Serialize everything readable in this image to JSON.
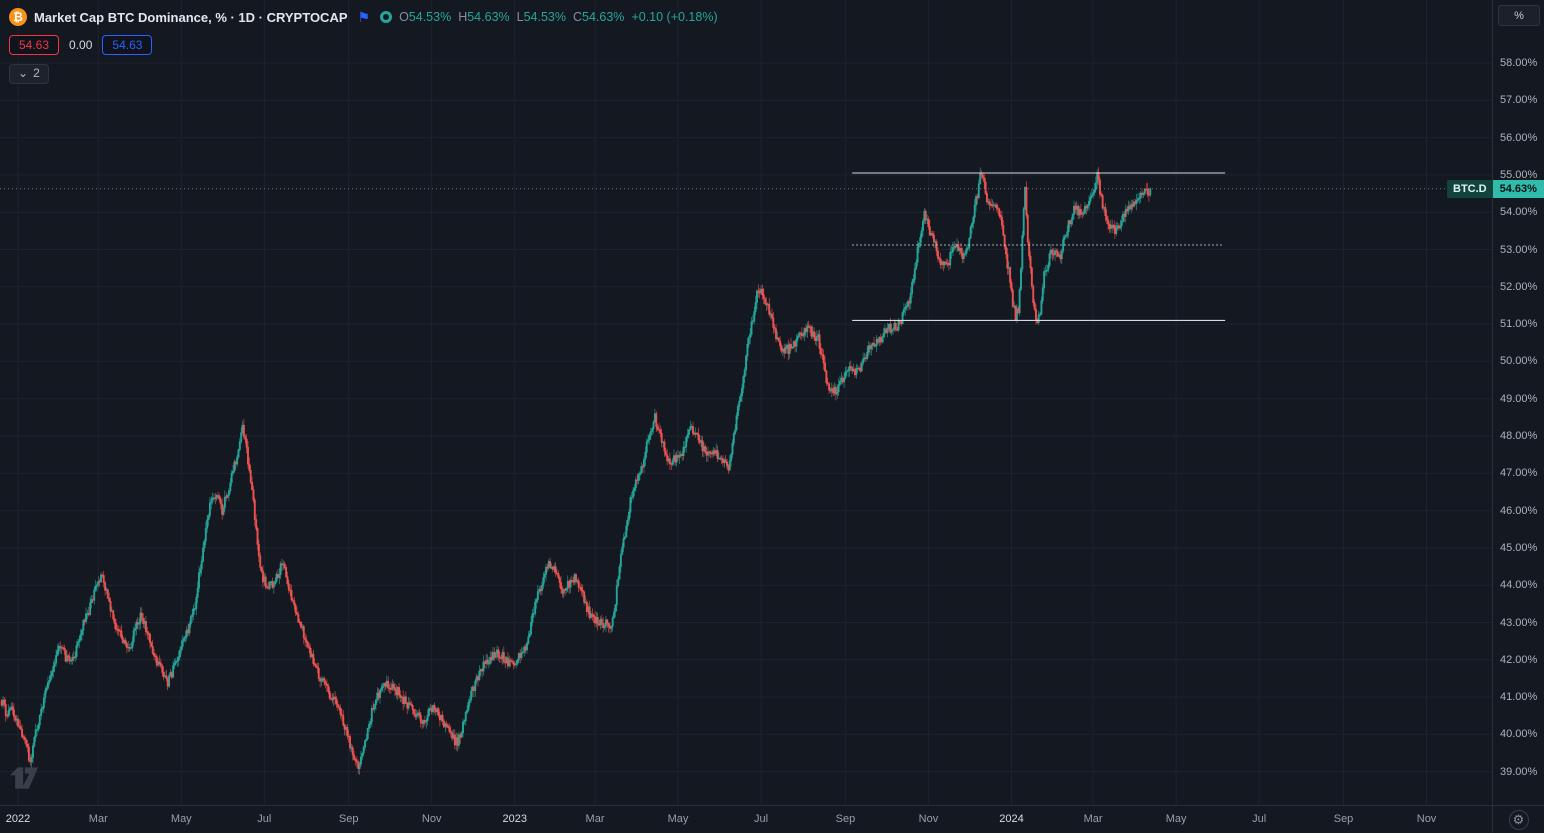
{
  "header": {
    "symbol_icon": "₿",
    "symbol_title": "Market Cap BTC Dominance, % · 1D · CRYPTOCAP",
    "ohlc": {
      "o_label": "O",
      "o_value": "54.53%",
      "h_label": "H",
      "h_value": "54.63%",
      "l_label": "L",
      "l_value": "54.53%",
      "c_label": "C",
      "c_value": "54.63%",
      "change_value": "+0.10 (+0.18%)"
    },
    "levels": {
      "sell_value": "54.63",
      "mid_value": "0.00",
      "buy_value": "54.63"
    },
    "tray": {
      "count": "2"
    }
  },
  "icons": {
    "flag": "⚑",
    "chevron_down": "⌄",
    "gear": "⚙"
  },
  "price_scale": {
    "unit_button": "%",
    "symbol_label": "BTC.D",
    "last_value": "54.63%"
  },
  "chart_data": {
    "type": "candlestick",
    "symbol": "BTC.D",
    "title": "Market Cap BTC Dominance",
    "interval": "1D",
    "source": "CRYPTOCAP",
    "unit": "%",
    "last_price": 54.63,
    "change": "+0.10 (+0.18%)",
    "grid": "on",
    "colors": {
      "up": "#26a69a",
      "down": "#ef5350",
      "grid": "#1c2230",
      "drawing": "#d6d9e0",
      "last_price_line": "#8a8e99",
      "background": "#141821",
      "label_bg": "#2fbcab"
    },
    "y_axis": {
      "unit": "%",
      "range": [
        38.1,
        59.7
      ],
      "ticks": [
        {
          "label": "58.00%",
          "price": 58
        },
        {
          "label": "57.00%",
          "price": 57
        },
        {
          "label": "56.00%",
          "price": 56
        },
        {
          "label": "55.00%",
          "price": 55
        },
        {
          "label": "54.00%",
          "price": 54
        },
        {
          "label": "53.00%",
          "price": 53
        },
        {
          "label": "52.00%",
          "price": 52
        },
        {
          "label": "51.00%",
          "price": 51
        },
        {
          "label": "50.00%",
          "price": 50
        },
        {
          "label": "49.00%",
          "price": 49
        },
        {
          "label": "48.00%",
          "price": 48
        },
        {
          "label": "47.00%",
          "price": 47
        },
        {
          "label": "46.00%",
          "price": 46
        },
        {
          "label": "45.00%",
          "price": 45
        },
        {
          "label": "44.00%",
          "price": 44
        },
        {
          "label": "43.00%",
          "price": 43
        },
        {
          "label": "42.00%",
          "price": 42
        },
        {
          "label": "41.00%",
          "price": 41
        },
        {
          "label": "40.00%",
          "price": 40
        },
        {
          "label": "39.00%",
          "price": 39
        }
      ]
    },
    "x_axis": {
      "ticks": [
        {
          "label": "2022",
          "day": 0,
          "major": true
        },
        {
          "label": "Mar",
          "day": 59,
          "major": false
        },
        {
          "label": "May",
          "day": 120,
          "major": false
        },
        {
          "label": "Jul",
          "day": 181,
          "major": false
        },
        {
          "label": "Sep",
          "day": 243,
          "major": false
        },
        {
          "label": "Nov",
          "day": 304,
          "major": false
        },
        {
          "label": "2023",
          "day": 365,
          "major": true
        },
        {
          "label": "Mar",
          "day": 424,
          "major": false
        },
        {
          "label": "May",
          "day": 485,
          "major": false
        },
        {
          "label": "Jul",
          "day": 546,
          "major": false
        },
        {
          "label": "Sep",
          "day": 608,
          "major": false
        },
        {
          "label": "Nov",
          "day": 669,
          "major": false
        },
        {
          "label": "2024",
          "day": 730,
          "major": true
        },
        {
          "label": "Mar",
          "day": 790,
          "major": false
        },
        {
          "label": "May",
          "day": 851,
          "major": false
        },
        {
          "label": "Jul",
          "day": 912,
          "major": false
        },
        {
          "label": "Sep",
          "day": 974,
          "major": false
        },
        {
          "label": "Nov",
          "day": 1035,
          "major": false
        }
      ]
    },
    "drawings": [
      {
        "type": "hline",
        "price": 55.05,
        "day_start": 613,
        "day_end": 887,
        "style": "solid"
      },
      {
        "type": "hline",
        "price": 53.12,
        "day_start": 613,
        "day_end": 885,
        "style": "dotted"
      },
      {
        "type": "hline",
        "price": 51.1,
        "day_start": 613,
        "day_end": 887,
        "style": "solid"
      }
    ],
    "close_keypoints": [
      [
        -12,
        40.9
      ],
      [
        -8,
        40.5
      ],
      [
        -4,
        40.7
      ],
      [
        0,
        40.3
      ],
      [
        4,
        39.9
      ],
      [
        9,
        39.3
      ],
      [
        14,
        40.2
      ],
      [
        20,
        41.1
      ],
      [
        26,
        41.8
      ],
      [
        31,
        42.4
      ],
      [
        36,
        42.0
      ],
      [
        42,
        42.2
      ],
      [
        48,
        43.0
      ],
      [
        53,
        43.4
      ],
      [
        58,
        44.0
      ],
      [
        62,
        44.35
      ],
      [
        66,
        43.6
      ],
      [
        71,
        43.0
      ],
      [
        76,
        42.6
      ],
      [
        82,
        42.3
      ],
      [
        87,
        42.9
      ],
      [
        91,
        43.2
      ],
      [
        96,
        42.6
      ],
      [
        101,
        42.0
      ],
      [
        106,
        41.7
      ],
      [
        110,
        41.4
      ],
      [
        115,
        41.8
      ],
      [
        119,
        42.2
      ],
      [
        125,
        42.8
      ],
      [
        130,
        43.5
      ],
      [
        136,
        45.0
      ],
      [
        141,
        46.2
      ],
      [
        146,
        46.4
      ],
      [
        150,
        46.0
      ],
      [
        155,
        46.6
      ],
      [
        159,
        47.2
      ],
      [
        163,
        47.9
      ],
      [
        165,
        48.35
      ],
      [
        168,
        47.6
      ],
      [
        172,
        46.5
      ],
      [
        176,
        45.2
      ],
      [
        179,
        44.3
      ],
      [
        183,
        43.9
      ],
      [
        187,
        44.0
      ],
      [
        191,
        44.3
      ],
      [
        195,
        44.6
      ],
      [
        199,
        44.0
      ],
      [
        204,
        43.3
      ],
      [
        209,
        42.8
      ],
      [
        213,
        42.4
      ],
      [
        218,
        41.9
      ],
      [
        222,
        41.5
      ],
      [
        227,
        41.2
      ],
      [
        231,
        41.0
      ],
      [
        236,
        40.6
      ],
      [
        240,
        40.2
      ],
      [
        245,
        39.6
      ],
      [
        250,
        39.05
      ],
      [
        255,
        39.8
      ],
      [
        260,
        40.6
      ],
      [
        265,
        41.1
      ],
      [
        270,
        41.4
      ],
      [
        275,
        41.3
      ],
      [
        279,
        41.15
      ],
      [
        284,
        40.9
      ],
      [
        288,
        40.7
      ],
      [
        293,
        40.5
      ],
      [
        297,
        40.35
      ],
      [
        302,
        40.6
      ],
      [
        306,
        40.8
      ],
      [
        311,
        40.4
      ],
      [
        317,
        40.0
      ],
      [
        323,
        39.75
      ],
      [
        328,
        40.4
      ],
      [
        332,
        41.0
      ],
      [
        337,
        41.5
      ],
      [
        342,
        41.9
      ],
      [
        347,
        42.05
      ],
      [
        352,
        42.2
      ],
      [
        357,
        42.05
      ],
      [
        362,
        41.9
      ],
      [
        366,
        42.0
      ],
      [
        371,
        42.1
      ],
      [
        376,
        42.8
      ],
      [
        381,
        43.6
      ],
      [
        386,
        44.2
      ],
      [
        391,
        44.6
      ],
      [
        395,
        44.3
      ],
      [
        400,
        43.9
      ],
      [
        406,
        44.1
      ],
      [
        411,
        44.2
      ],
      [
        415,
        43.7
      ],
      [
        420,
        43.2
      ],
      [
        424,
        43.05
      ],
      [
        429,
        43.0
      ],
      [
        433,
        42.95
      ],
      [
        436,
        42.9
      ],
      [
        439,
        43.6
      ],
      [
        442,
        44.5
      ],
      [
        446,
        45.4
      ],
      [
        450,
        46.3
      ],
      [
        455,
        46.8
      ],
      [
        459,
        47.3
      ],
      [
        463,
        47.9
      ],
      [
        468,
        48.5
      ],
      [
        473,
        47.9
      ],
      [
        478,
        47.3
      ],
      [
        482,
        47.4
      ],
      [
        487,
        47.5
      ],
      [
        491,
        47.9
      ],
      [
        495,
        48.2
      ],
      [
        500,
        47.9
      ],
      [
        505,
        47.6
      ],
      [
        509,
        47.55
      ],
      [
        514,
        47.5
      ],
      [
        518,
        47.35
      ],
      [
        522,
        47.2
      ],
      [
        526,
        48.0
      ],
      [
        529,
        48.8
      ],
      [
        533,
        49.6
      ],
      [
        536,
        50.4
      ],
      [
        540,
        51.2
      ],
      [
        544,
        52.0
      ],
      [
        547,
        51.8
      ],
      [
        551,
        51.5
      ],
      [
        555,
        51.0
      ],
      [
        558,
        50.5
      ],
      [
        562,
        50.35
      ],
      [
        566,
        50.3
      ],
      [
        570,
        50.45
      ],
      [
        573,
        50.6
      ],
      [
        577,
        50.75
      ],
      [
        580,
        50.9
      ],
      [
        584,
        50.75
      ],
      [
        588,
        50.6
      ],
      [
        592,
        49.9
      ],
      [
        595,
        49.35
      ],
      [
        599,
        49.2
      ],
      [
        602,
        49.25
      ],
      [
        606,
        49.5
      ],
      [
        610,
        49.8
      ],
      [
        613,
        49.75
      ],
      [
        617,
        49.7
      ],
      [
        621,
        50.0
      ],
      [
        624,
        50.3
      ],
      [
        628,
        50.4
      ],
      [
        632,
        50.5
      ],
      [
        635,
        50.7
      ],
      [
        639,
        50.9
      ],
      [
        643,
        50.9
      ],
      [
        646,
        50.9
      ],
      [
        650,
        51.2
      ],
      [
        654,
        51.5
      ],
      [
        658,
        52.2
      ],
      [
        661,
        53.0
      ],
      [
        664,
        53.6
      ],
      [
        666,
        53.9
      ],
      [
        669,
        53.6
      ],
      [
        672,
        53.3
      ],
      [
        675,
        53.0
      ],
      [
        677,
        52.7
      ],
      [
        680,
        52.65
      ],
      [
        683,
        52.6
      ],
      [
        686,
        52.9
      ],
      [
        688,
        53.2
      ],
      [
        691,
        53.0
      ],
      [
        694,
        52.8
      ],
      [
        697,
        53.05
      ],
      [
        699,
        53.3
      ],
      [
        702,
        53.9
      ],
      [
        705,
        54.5
      ],
      [
        708,
        55.1
      ],
      [
        710,
        54.7
      ],
      [
        713,
        54.2
      ],
      [
        716,
        54.25
      ],
      [
        718,
        54.3
      ],
      [
        721,
        53.95
      ],
      [
        723,
        53.6
      ],
      [
        725,
        53.1
      ],
      [
        727,
        52.6
      ],
      [
        729,
        52.2
      ],
      [
        731,
        51.6
      ],
      [
        733,
        51.2
      ],
      [
        735,
        51.4
      ],
      [
        737,
        52.6
      ],
      [
        739,
        54.0
      ],
      [
        740,
        54.55
      ],
      [
        741,
        53.8
      ],
      [
        743,
        52.8
      ],
      [
        745,
        52.0
      ],
      [
        747,
        51.3
      ],
      [
        749,
        51.05
      ],
      [
        751,
        51.3
      ],
      [
        753,
        51.9
      ],
      [
        754,
        52.3
      ],
      [
        757,
        52.65
      ],
      [
        760,
        53.0
      ],
      [
        763,
        52.9
      ],
      [
        766,
        52.8
      ],
      [
        768,
        53.2
      ],
      [
        771,
        53.6
      ],
      [
        774,
        53.9
      ],
      [
        777,
        54.2
      ],
      [
        779,
        54.05
      ],
      [
        782,
        53.9
      ],
      [
        785,
        54.1
      ],
      [
        788,
        54.3
      ],
      [
        790,
        54.6
      ],
      [
        793,
        55.0
      ],
      [
        795,
        54.5
      ],
      [
        798,
        54.0
      ],
      [
        800,
        53.8
      ],
      [
        802,
        53.6
      ],
      [
        805,
        53.55
      ],
      [
        807,
        53.5
      ],
      [
        810,
        53.75
      ],
      [
        813,
        54.0
      ],
      [
        815,
        54.1
      ],
      [
        818,
        54.2
      ],
      [
        820,
        54.25
      ],
      [
        823,
        54.3
      ],
      [
        825,
        54.4
      ],
      [
        828,
        54.5
      ],
      [
        830,
        54.55
      ],
      [
        832,
        54.63
      ]
    ]
  }
}
